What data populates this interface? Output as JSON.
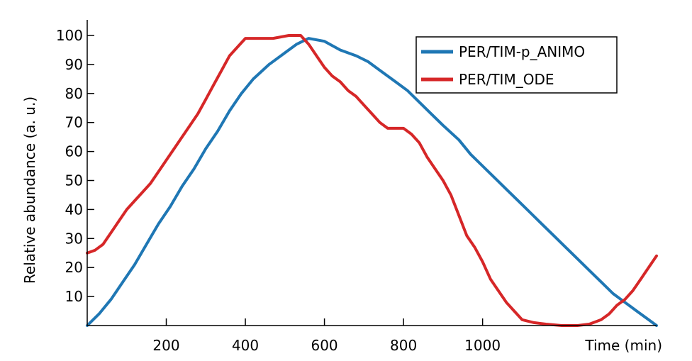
{
  "chart_data": {
    "type": "line",
    "xlabel": "Time (min)",
    "ylabel": "Relative abundance (a. u.)",
    "xlim": [
      0,
      1440
    ],
    "ylim": [
      0,
      100
    ],
    "xticks": [
      200,
      400,
      600,
      800,
      1000
    ],
    "yticks": [
      10,
      20,
      30,
      40,
      50,
      60,
      70,
      80,
      90,
      100
    ],
    "legend": "top-right",
    "series": [
      {
        "name": "PER/TIM-p_ANIMO",
        "color": "#1f77b4",
        "x": [
          0,
          30,
          60,
          90,
          120,
          150,
          180,
          210,
          240,
          270,
          300,
          330,
          360,
          390,
          420,
          460,
          500,
          530,
          560,
          600,
          640,
          680,
          710,
          740,
          780,
          810,
          840,
          870,
          900,
          940,
          970,
          1000,
          1030,
          1060,
          1090,
          1120,
          1150,
          1180,
          1210,
          1240,
          1270,
          1300,
          1330,
          1360,
          1390,
          1420,
          1440
        ],
        "y": [
          0,
          4,
          9,
          15,
          21,
          28,
          35,
          41,
          48,
          54,
          61,
          67,
          74,
          80,
          85,
          90,
          94,
          97,
          99,
          98,
          95,
          93,
          91,
          88,
          84,
          81,
          77,
          73,
          69,
          64,
          59,
          55,
          51,
          47,
          43,
          39,
          35,
          31,
          27,
          23,
          19,
          15,
          11,
          8,
          5,
          2,
          0
        ]
      },
      {
        "name": "PER/TIM_ODE",
        "color": "#d62728",
        "x": [
          0,
          20,
          40,
          60,
          80,
          100,
          120,
          140,
          160,
          180,
          200,
          220,
          240,
          260,
          280,
          300,
          320,
          340,
          360,
          380,
          400,
          430,
          470,
          510,
          540,
          560,
          580,
          600,
          620,
          640,
          660,
          680,
          700,
          720,
          740,
          760,
          800,
          820,
          840,
          860,
          880,
          900,
          920,
          940,
          960,
          980,
          1000,
          1020,
          1040,
          1060,
          1080,
          1100,
          1130,
          1160,
          1200,
          1240,
          1270,
          1300,
          1320,
          1340,
          1360,
          1380,
          1400,
          1420,
          1440
        ],
        "y": [
          25,
          26,
          28,
          32,
          36,
          40,
          43,
          46,
          49,
          53,
          57,
          61,
          65,
          69,
          73,
          78,
          83,
          88,
          93,
          96,
          99,
          99,
          99,
          100,
          100,
          97,
          93,
          89,
          86,
          84,
          81,
          79,
          76,
          73,
          70,
          68,
          68,
          66,
          63,
          58,
          54,
          50,
          45,
          38,
          31,
          27,
          22,
          16,
          12,
          8,
          5,
          2,
          1,
          0.5,
          0,
          0,
          0.5,
          2,
          4,
          7,
          9,
          12,
          16,
          20,
          24
        ]
      }
    ]
  }
}
